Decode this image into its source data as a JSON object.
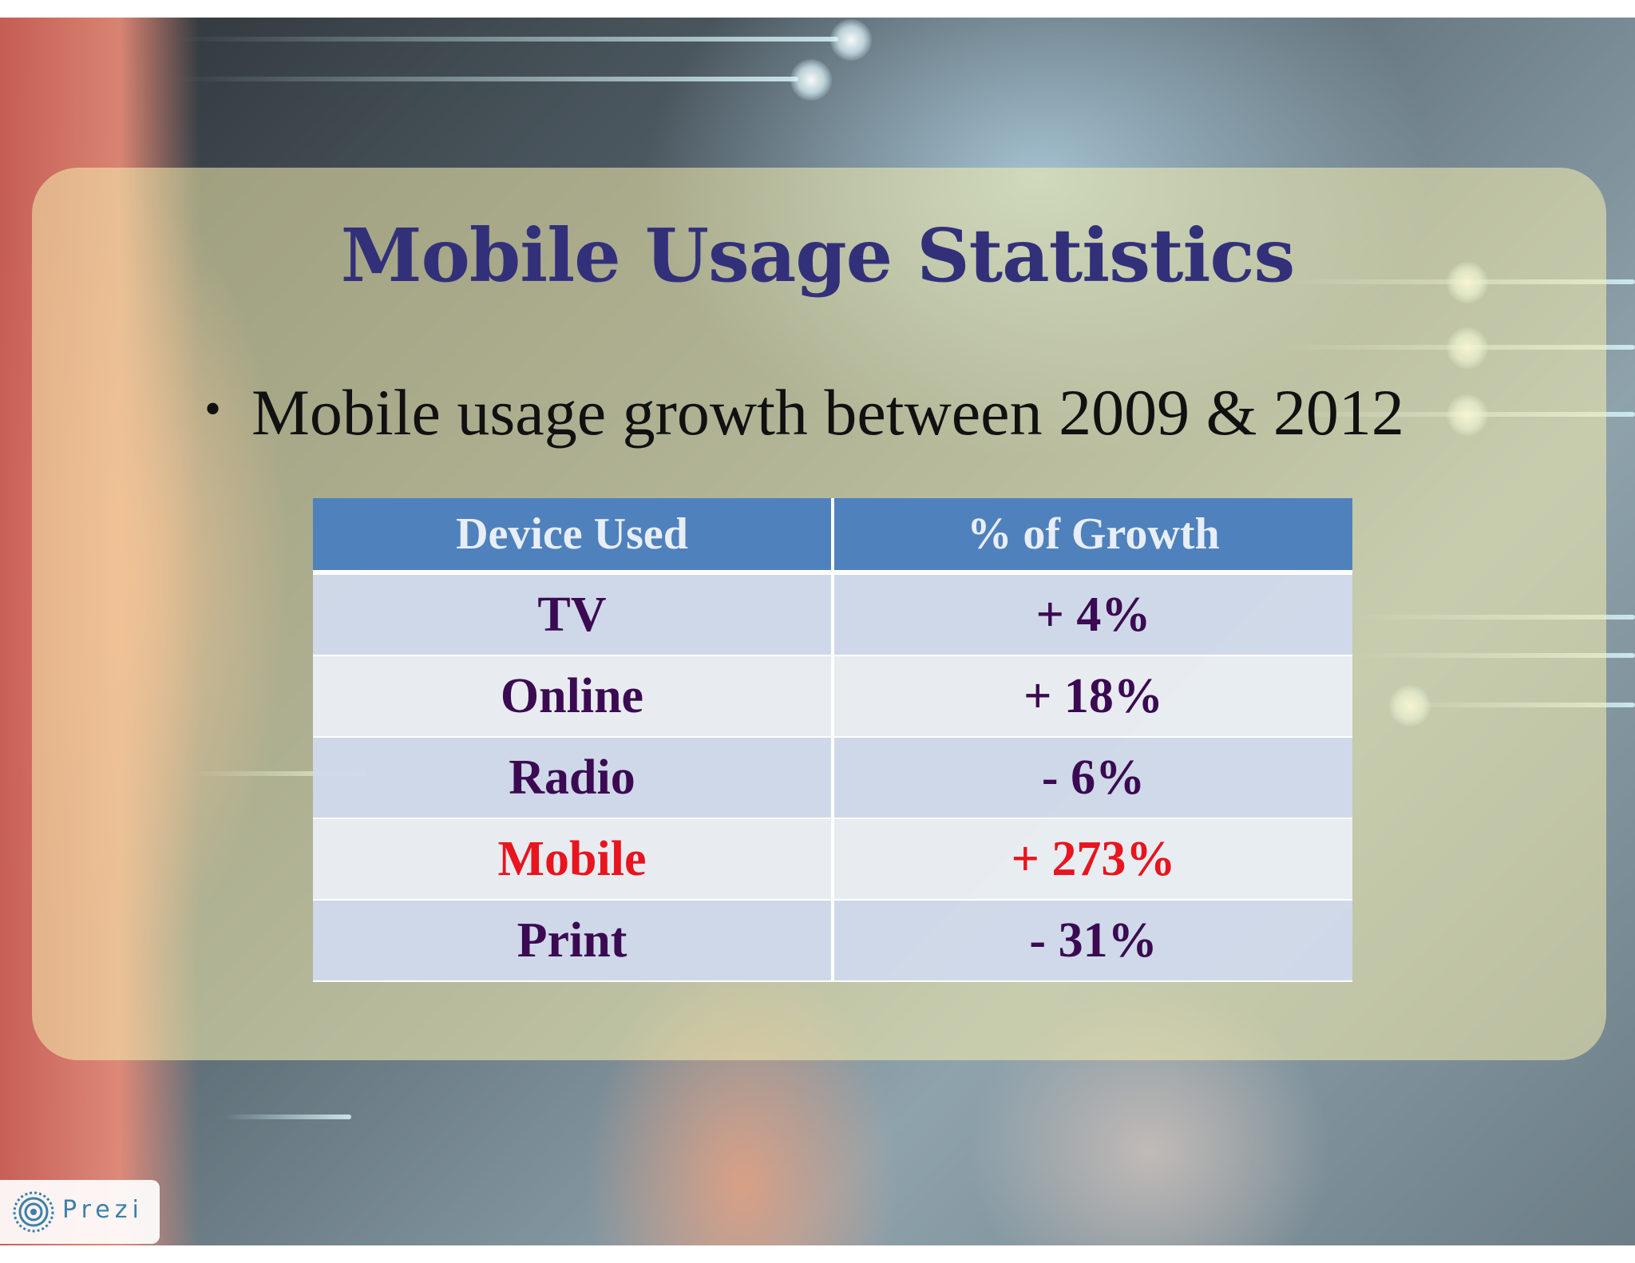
{
  "slide": {
    "title": "Mobile Usage Statistics",
    "bullet": "Mobile usage growth between 2009 & 2012",
    "bullet_symbol": "•"
  },
  "table": {
    "headers": [
      "Device Used",
      "% of Growth"
    ],
    "rows": [
      {
        "device": "TV",
        "growth": "+ 4%",
        "highlighted": false
      },
      {
        "device": "Online",
        "growth": "+ 18%",
        "highlighted": false
      },
      {
        "device": "Radio",
        "growth": "- 6%",
        "highlighted": false
      },
      {
        "device": "Mobile",
        "growth": "+ 273%",
        "highlighted": true
      },
      {
        "device": "Print",
        "growth": "- 31%",
        "highlighted": false
      }
    ],
    "colors": {
      "header_bg": "#4f81bd",
      "text": "#3b0a52",
      "highlight_text": "#e8141e"
    }
  },
  "branding": {
    "logo_text": "Prezi",
    "icon": "prezi-logo-icon",
    "color": "#3d7fa8"
  },
  "theme": {
    "title_color": "#33307a"
  }
}
